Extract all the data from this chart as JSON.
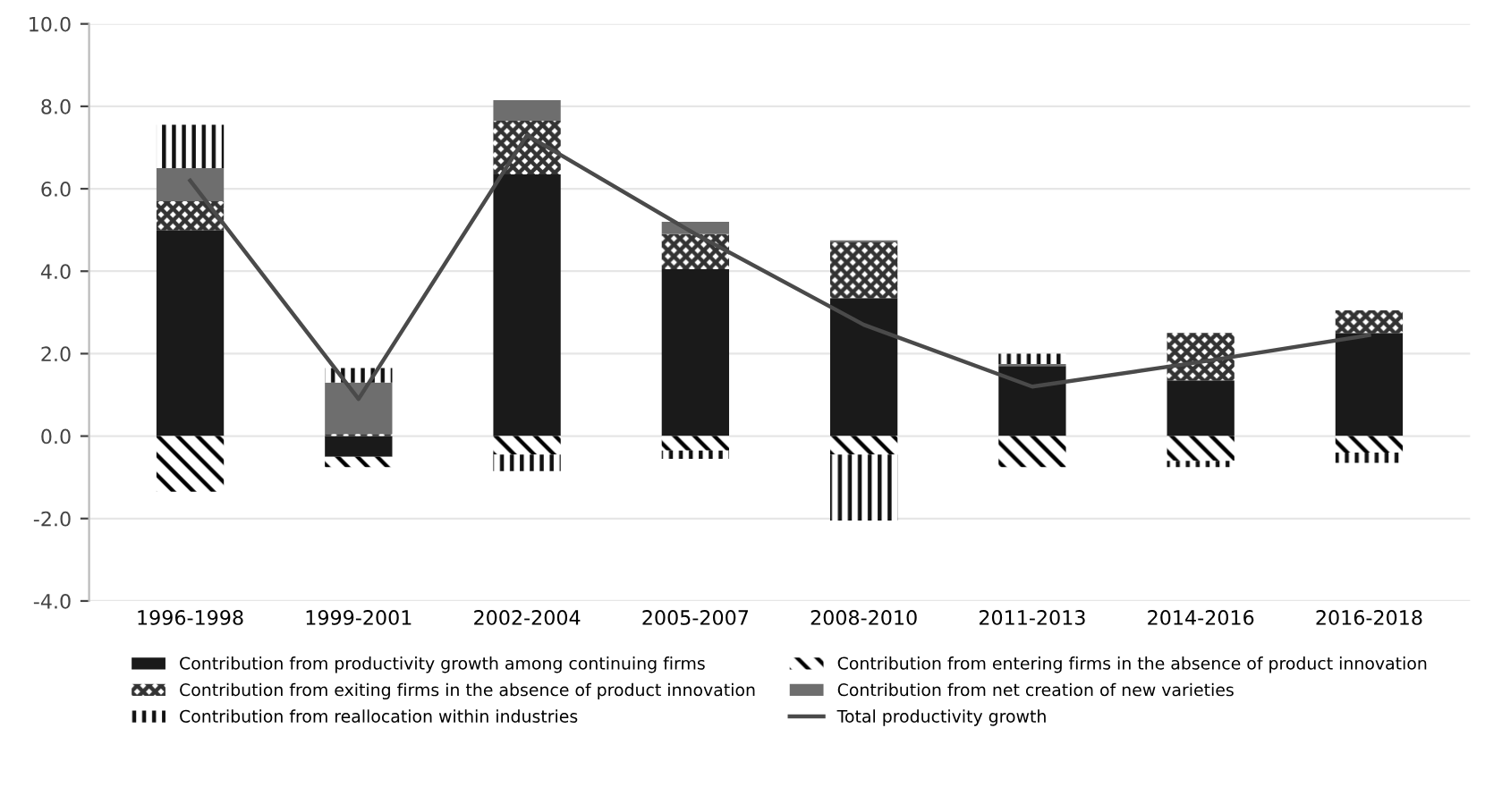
{
  "chart_data": {
    "type": "bar",
    "stacked": true,
    "categories": [
      "1996-1998",
      "1999-2001",
      "2002-2004",
      "2005-2007",
      "2008-2010",
      "2011-2013",
      "2014-2016",
      "2016-2018"
    ],
    "series": [
      {
        "name": "Contribution from productivity growth among continuing firms",
        "color": "#1a1a1a",
        "values": [
          5.0,
          -0.5,
          6.35,
          4.05,
          3.35,
          1.7,
          1.35,
          2.5
        ]
      },
      {
        "name": "Contribution from entering firms in the absence of product innovation",
        "color": "#000000",
        "values": [
          -1.35,
          -0.25,
          -0.45,
          -0.35,
          -0.45,
          -0.75,
          -0.6,
          -0.4
        ]
      },
      {
        "name": "Contribution from exiting firms in the absence of product innovation",
        "color": "#333333",
        "values": [
          0.7,
          0.05,
          1.3,
          0.85,
          1.35,
          0.0,
          1.15,
          0.55
        ]
      },
      {
        "name": "Contribution from net creation of new varieties",
        "color": "#6e6e6e",
        "values": [
          0.8,
          1.25,
          0.5,
          0.3,
          0.05,
          0.05,
          0.0,
          0.0
        ]
      },
      {
        "name": "Contribution from reallocation within industries",
        "color": "#111111",
        "values": [
          1.05,
          0.35,
          -0.4,
          -0.2,
          -1.6,
          0.25,
          -0.15,
          -0.25
        ]
      },
      {
        "name": "Total productivity growth",
        "type": "line",
        "color": "#4a4a4a",
        "values": [
          6.2,
          0.9,
          7.3,
          4.9,
          2.7,
          1.2,
          1.8,
          2.45
        ]
      }
    ],
    "ylim": [
      -4.0,
      10.0
    ],
    "yticks": [
      {
        "value": -4,
        "label": "-4.0"
      },
      {
        "value": -2,
        "label": "-2.0"
      },
      {
        "value": 0,
        "label": "0.0"
      },
      {
        "value": 2,
        "label": "2.0"
      },
      {
        "value": 4,
        "label": "4.0"
      },
      {
        "value": 6,
        "label": "6.0"
      },
      {
        "value": 8,
        "label": "8.0"
      },
      {
        "value": 10,
        "label": "10.0"
      }
    ],
    "grid": "y",
    "legend": "bottom"
  }
}
